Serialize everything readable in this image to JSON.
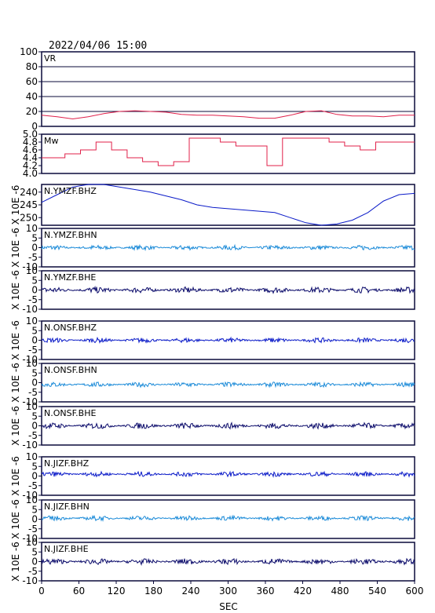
{
  "header": {
    "datetime": "2022/04/06 15:00"
  },
  "colors": {
    "vr": "#e0204a",
    "mw": "#e0204a",
    "bhz": "#0a1ac8",
    "bhn": "#1a8ad8",
    "bhe": "#0a0a6a",
    "frame": "#0a0a3a",
    "grid": "#0a0a3a"
  },
  "chart_data": [
    {
      "type": "line",
      "label": "VR",
      "ylim": [
        0,
        100
      ],
      "yticks": [
        "100",
        "80",
        "60",
        "40",
        "20",
        "0"
      ],
      "grid": true,
      "series": [
        {
          "x": [
            0,
            25,
            50,
            75,
            100,
            125,
            150,
            175,
            200,
            225,
            250,
            275,
            300,
            325,
            350,
            375,
            400,
            425,
            450,
            475,
            500,
            525,
            550,
            575,
            600
          ],
          "values": [
            15,
            13,
            10,
            13,
            17,
            20,
            21,
            20,
            19,
            16,
            15,
            15,
            14,
            13,
            11,
            11,
            15,
            20,
            21,
            16,
            14,
            14,
            13,
            15,
            15
          ]
        }
      ]
    },
    {
      "type": "line",
      "label": "Mw",
      "ylim": [
        4.0,
        5.0
      ],
      "yticks": [
        "5.0",
        "4.8",
        "4.6",
        "4.4",
        "4.2",
        "4.0"
      ],
      "series": [
        {
          "x": [
            0,
            25,
            50,
            75,
            100,
            125,
            150,
            175,
            200,
            225,
            250,
            275,
            300,
            325,
            350,
            375,
            400,
            425,
            450,
            475,
            500,
            525,
            550,
            575,
            600
          ],
          "values": [
            4.4,
            4.4,
            4.5,
            4.6,
            4.8,
            4.6,
            4.4,
            4.3,
            4.2,
            4.3,
            4.9,
            4.9,
            4.8,
            4.7,
            4.7,
            4.2,
            4.9,
            4.9,
            4.9,
            4.8,
            4.7,
            4.6,
            4.8,
            4.8,
            4.8
          ]
        }
      ]
    },
    {
      "type": "line",
      "label": "N.YMZF.BHZ",
      "ylim": [
        -253,
        -237
      ],
      "yticks": [
        "240",
        "245",
        "250"
      ],
      "tick_values": [
        -240,
        -245,
        -250
      ],
      "series": [
        {
          "x": [
            0,
            25,
            50,
            75,
            100,
            125,
            150,
            175,
            200,
            225,
            250,
            275,
            300,
            325,
            350,
            375,
            400,
            425,
            450,
            475,
            500,
            525,
            550,
            575,
            600
          ],
          "values": [
            -244,
            -241,
            -238,
            -237,
            -237,
            -238,
            -239,
            -240,
            -241.5,
            -243,
            -245,
            -246,
            -246.5,
            -247,
            -247.5,
            -248,
            -250,
            -252,
            -253,
            -252.5,
            -251,
            -248,
            -243.5,
            -241,
            -240.5
          ]
        }
      ]
    },
    {
      "type": "line",
      "label": "N.YMZF.BHN",
      "ylim": [
        -10,
        10
      ],
      "yticks": [
        "10",
        "5",
        "0",
        "-5",
        "-10"
      ],
      "series": [
        {
          "x": [
            0,
            600
          ],
          "values": [
            0,
            0
          ]
        }
      ]
    },
    {
      "type": "line",
      "label": "N.YMZF.BHE",
      "ylim": [
        -10,
        10
      ],
      "yticks": [
        "10",
        "5",
        "0",
        "-5",
        "-10"
      ],
      "series": [
        {
          "x": [
            0,
            600
          ],
          "values": [
            0,
            0
          ]
        }
      ]
    },
    {
      "type": "line",
      "label": "N.ONSF.BHZ",
      "ylim": [
        -10,
        10
      ],
      "yticks": [
        "10",
        "5",
        "0",
        "-5",
        "-10"
      ],
      "series": [
        {
          "x": [
            0,
            600
          ],
          "values": [
            0,
            0
          ]
        }
      ]
    },
    {
      "type": "line",
      "label": "N.ONSF.BHN",
      "ylim": [
        -10,
        10
      ],
      "yticks": [
        "10",
        "5",
        "0",
        "-5",
        "-10"
      ],
      "series": [
        {
          "x": [
            0,
            600
          ],
          "values": [
            -1,
            -1
          ]
        }
      ]
    },
    {
      "type": "line",
      "label": "N.ONSF.BHE",
      "ylim": [
        -10,
        10
      ],
      "yticks": [
        "10",
        "5",
        "0",
        "-5",
        "-10"
      ],
      "series": [
        {
          "x": [
            0,
            600
          ],
          "values": [
            0,
            0
          ]
        }
      ]
    },
    {
      "type": "line",
      "label": "N.JIZF.BHZ",
      "ylim": [
        -10,
        10
      ],
      "yticks": [
        "10",
        "5",
        "0",
        "-5",
        "-10"
      ],
      "series": [
        {
          "x": [
            0,
            600
          ],
          "values": [
            1,
            1
          ]
        }
      ]
    },
    {
      "type": "line",
      "label": "N.JIZF.BHN",
      "ylim": [
        -10,
        10
      ],
      "yticks": [
        "10",
        "5",
        "0",
        "-5",
        "-10"
      ],
      "series": [
        {
          "x": [
            0,
            600
          ],
          "values": [
            0.5,
            0.5
          ]
        }
      ]
    },
    {
      "type": "line",
      "label": "N.JIZF.BHE",
      "ylim": [
        -10,
        10
      ],
      "yticks": [
        "10",
        "5",
        "0",
        "-5",
        "-10"
      ],
      "series": [
        {
          "x": [
            0,
            600
          ],
          "values": [
            0,
            0
          ]
        }
      ]
    }
  ],
  "unit_label": "X 10E -6",
  "xaxis": {
    "ticks": [
      0,
      60,
      120,
      180,
      240,
      300,
      360,
      420,
      480,
      540,
      600
    ],
    "labels": [
      "0",
      "60",
      "120",
      "180",
      "240",
      "300",
      "360",
      "420",
      "480",
      "540",
      "600"
    ],
    "xlabel": "SEC",
    "xlim": [
      0,
      600
    ]
  }
}
